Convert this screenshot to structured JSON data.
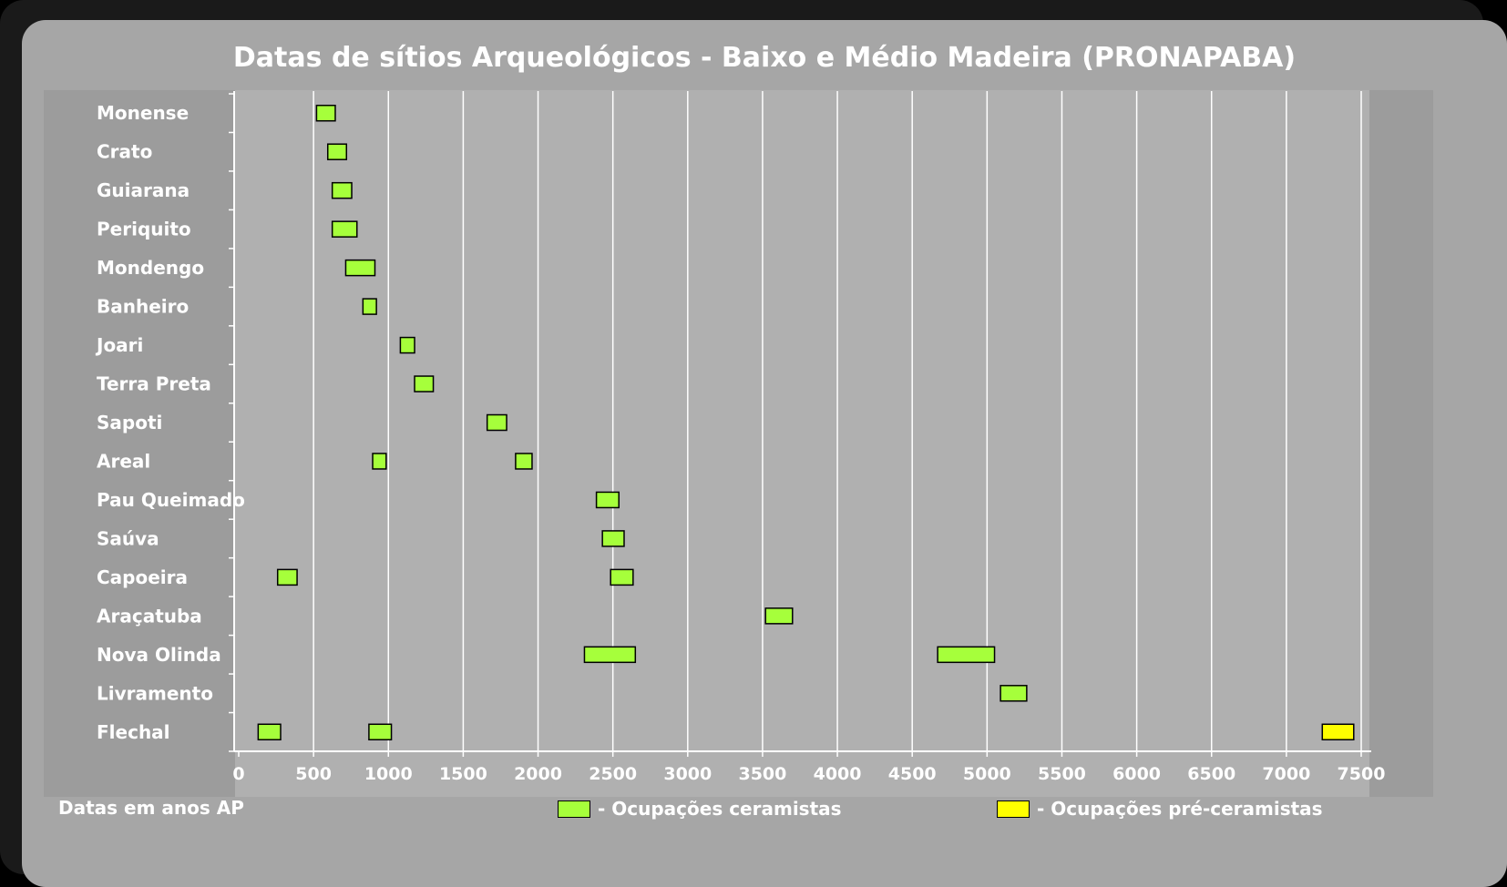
{
  "chart_data": {
    "type": "bar",
    "title": "Datas de sítios Arqueológicos - Baixo e Médio Madeira (PRONAPABA)",
    "xlabel": "Datas em anos AP",
    "ylabel": "",
    "xlim": [
      0,
      7500
    ],
    "xticks": [
      0,
      500,
      1000,
      1500,
      2000,
      2500,
      3000,
      3500,
      4000,
      4500,
      5000,
      5500,
      6000,
      6500,
      7000,
      7500
    ],
    "grid": true,
    "legend_position": "bottom",
    "categories": [
      "Monense",
      "Crato",
      "Guiarana",
      "Periquito",
      "Mondengo",
      "Banheiro",
      "Joari",
      "Terra Preta",
      "Sapoti",
      "Areal",
      "Pau Queimado",
      "Saúva",
      "Capoeira",
      "Araçatuba",
      "Nova Olinda",
      "Livramento",
      "Flechal"
    ],
    "series": [
      {
        "name": "- Ocupações ceramistas",
        "color": "#a6ff3b",
        "ranges": [
          {
            "site": "Monense",
            "start": 520,
            "end": 645
          },
          {
            "site": "Crato",
            "start": 595,
            "end": 720
          },
          {
            "site": "Guiarana",
            "start": 625,
            "end": 755
          },
          {
            "site": "Periquito",
            "start": 625,
            "end": 790
          },
          {
            "site": "Mondengo",
            "start": 715,
            "end": 910
          },
          {
            "site": "Banheiro",
            "start": 830,
            "end": 920
          },
          {
            "site": "Joari",
            "start": 1080,
            "end": 1175
          },
          {
            "site": "Terra Preta",
            "start": 1175,
            "end": 1300
          },
          {
            "site": "Sapoti",
            "start": 1660,
            "end": 1790
          },
          {
            "site": "Areal",
            "start": 895,
            "end": 985
          },
          {
            "site": "Areal",
            "start": 1850,
            "end": 1960
          },
          {
            "site": "Pau Queimado",
            "start": 2390,
            "end": 2540
          },
          {
            "site": "Saúva",
            "start": 2430,
            "end": 2575
          },
          {
            "site": "Capoeira",
            "start": 260,
            "end": 390
          },
          {
            "site": "Capoeira",
            "start": 2485,
            "end": 2635
          },
          {
            "site": "Araçatuba",
            "start": 3520,
            "end": 3700
          },
          {
            "site": "Nova Olinda",
            "start": 2310,
            "end": 2650
          },
          {
            "site": "Nova Olinda",
            "start": 4670,
            "end": 5050
          },
          {
            "site": "Livramento",
            "start": 5090,
            "end": 5265
          },
          {
            "site": "Flechal",
            "start": 130,
            "end": 280
          },
          {
            "site": "Flechal",
            "start": 870,
            "end": 1020
          }
        ]
      },
      {
        "name": "- Ocupações pré-ceramistas",
        "color": "#ffff00",
        "ranges": [
          {
            "site": "Flechal",
            "start": 7240,
            "end": 7450
          }
        ]
      }
    ]
  }
}
